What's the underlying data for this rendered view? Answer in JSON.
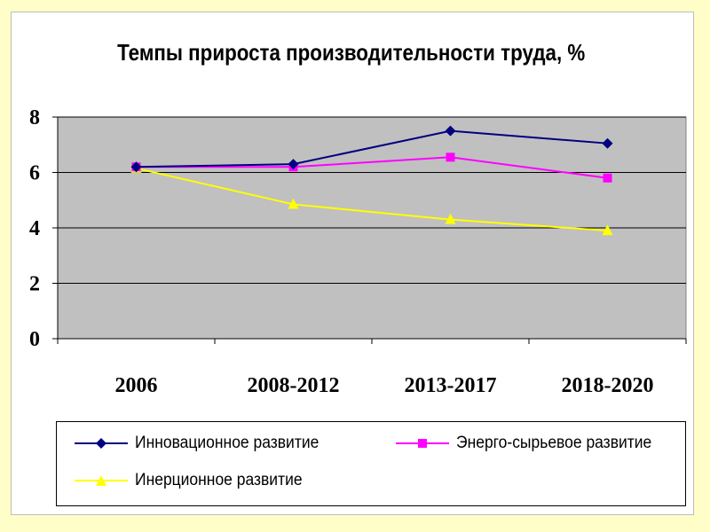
{
  "chart_data": {
    "type": "line",
    "title": "Темпы прироста производительности труда, %",
    "categories": [
      "2006",
      "2008-2012",
      "2013-2017",
      "2018-2020"
    ],
    "ylim": [
      0,
      8
    ],
    "yticks": [
      0,
      2,
      4,
      6,
      8
    ],
    "grid": true,
    "plot_background": "#c0c0c0",
    "legend_position": "bottom",
    "series": [
      {
        "name": "Инновационное развитие",
        "values": [
          6.2,
          6.3,
          7.5,
          7.05
        ],
        "color": "#000080",
        "marker": "diamond"
      },
      {
        "name": "Энерго-сырьевое развитие",
        "values": [
          6.2,
          6.2,
          6.55,
          5.8
        ],
        "color": "#ff00ff",
        "marker": "square"
      },
      {
        "name": "Инерционное развитие",
        "values": [
          6.15,
          4.85,
          4.3,
          3.9
        ],
        "color": "#ffff00",
        "marker": "triangle"
      }
    ]
  }
}
